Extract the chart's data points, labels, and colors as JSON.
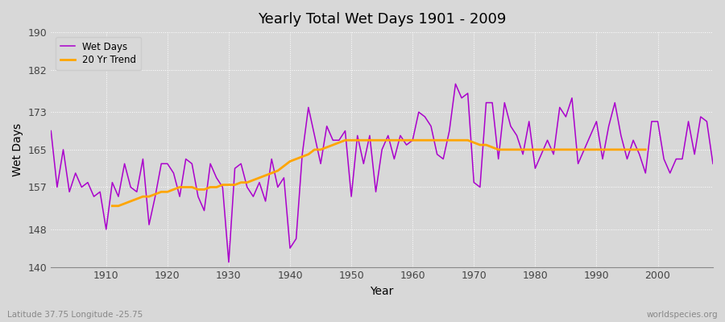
{
  "title": "Yearly Total Wet Days 1901 - 2009",
  "xlabel": "Year",
  "ylabel": "Wet Days",
  "xlim": [
    1901,
    2009
  ],
  "ylim": [
    140,
    190
  ],
  "yticks": [
    140,
    148,
    157,
    165,
    173,
    182,
    190
  ],
  "xticks": [
    1910,
    1920,
    1930,
    1940,
    1950,
    1960,
    1970,
    1980,
    1990,
    2000
  ],
  "wet_days_color": "#aa00cc",
  "trend_color": "#FFA500",
  "background_color": "#d8d8d8",
  "plot_bg_color": "#d8d8d8",
  "grid_color": "#ffffff",
  "footnote_left": "Latitude 37.75 Longitude -25.75",
  "footnote_right": "worldspecies.org",
  "legend_labels": [
    "Wet Days",
    "20 Yr Trend"
  ],
  "years": [
    1901,
    1902,
    1903,
    1904,
    1905,
    1906,
    1907,
    1908,
    1909,
    1910,
    1911,
    1912,
    1913,
    1914,
    1915,
    1916,
    1917,
    1918,
    1919,
    1920,
    1921,
    1922,
    1923,
    1924,
    1925,
    1926,
    1927,
    1928,
    1929,
    1930,
    1931,
    1932,
    1933,
    1934,
    1935,
    1936,
    1937,
    1938,
    1939,
    1940,
    1941,
    1942,
    1943,
    1944,
    1945,
    1946,
    1947,
    1948,
    1949,
    1950,
    1951,
    1952,
    1953,
    1954,
    1955,
    1956,
    1957,
    1958,
    1959,
    1960,
    1961,
    1962,
    1963,
    1964,
    1965,
    1966,
    1967,
    1968,
    1969,
    1970,
    1971,
    1972,
    1973,
    1974,
    1975,
    1976,
    1977,
    1978,
    1979,
    1980,
    1981,
    1982,
    1983,
    1984,
    1985,
    1986,
    1987,
    1988,
    1989,
    1990,
    1991,
    1992,
    1993,
    1994,
    1995,
    1996,
    1997,
    1998,
    1999,
    2000,
    2001,
    2002,
    2003,
    2004,
    2005,
    2006,
    2007,
    2008,
    2009
  ],
  "wet_days": [
    169,
    157,
    165,
    156,
    160,
    157,
    158,
    155,
    156,
    148,
    158,
    155,
    162,
    157,
    156,
    163,
    149,
    155,
    162,
    162,
    160,
    155,
    163,
    162,
    155,
    152,
    162,
    159,
    157,
    141,
    161,
    162,
    157,
    155,
    158,
    154,
    163,
    157,
    159,
    144,
    146,
    164,
    174,
    168,
    162,
    170,
    167,
    167,
    169,
    155,
    168,
    162,
    168,
    156,
    165,
    168,
    163,
    168,
    166,
    167,
    173,
    172,
    170,
    164,
    163,
    169,
    179,
    176,
    177,
    158,
    157,
    175,
    175,
    163,
    175,
    170,
    168,
    164,
    171,
    161,
    164,
    167,
    164,
    174,
    172,
    176,
    162,
    165,
    168,
    171,
    163,
    170,
    175,
    168,
    163,
    167,
    164,
    160,
    171,
    171,
    163,
    160,
    163,
    163,
    171,
    164,
    172,
    171,
    162
  ],
  "trend": [
    null,
    null,
    null,
    null,
    null,
    null,
    null,
    null,
    null,
    null,
    153,
    153,
    153.5,
    154,
    154.5,
    155,
    155,
    155.5,
    156,
    156,
    156.5,
    157,
    157,
    157,
    156.5,
    156.5,
    157,
    157,
    157.5,
    157.5,
    157.5,
    158,
    158,
    158.5,
    159,
    159.5,
    160,
    160.5,
    161.5,
    162.5,
    163,
    163.5,
    164,
    165,
    165,
    165.5,
    166,
    166.5,
    167,
    167,
    167,
    167,
    167,
    167,
    167,
    167,
    167,
    167,
    167,
    167,
    167,
    167,
    167,
    167,
    167,
    167,
    167,
    167,
    167,
    166.5,
    166,
    166,
    165.5,
    165,
    165,
    165,
    165,
    165,
    165,
    165,
    165,
    165,
    165,
    165,
    165,
    165,
    165,
    165,
    165,
    165,
    165,
    165,
    165,
    165,
    165,
    165,
    165,
    165,
    null,
    null,
    null,
    null,
    null,
    null,
    null,
    null,
    null,
    null
  ]
}
